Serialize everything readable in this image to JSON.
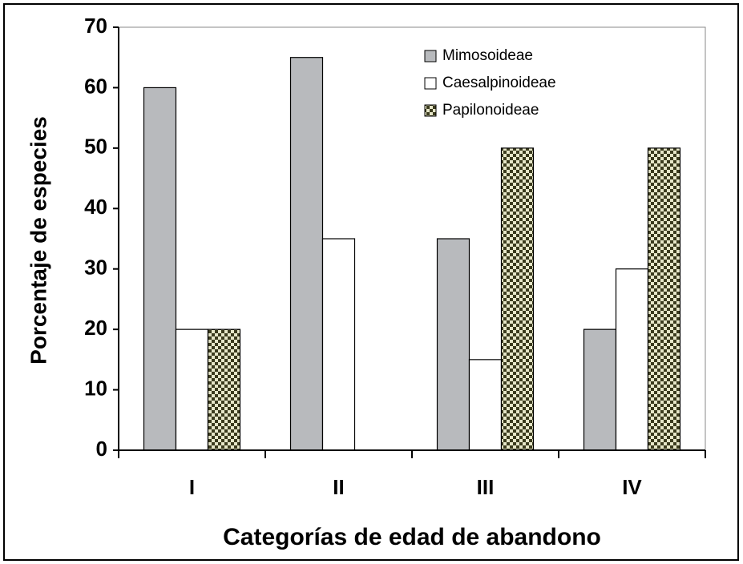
{
  "chart_data": {
    "type": "bar",
    "ylabel": "Porcentaje de especies",
    "xlabel": "Categorías de edad de abandono",
    "categories": [
      "I",
      "II",
      "III",
      "IV"
    ],
    "series": [
      {
        "name": "Mimosoideae",
        "color": "#b8babd",
        "values": [
          60,
          65,
          35,
          20
        ]
      },
      {
        "name": "Caesalpinoideae",
        "color": "#ffffff",
        "values": [
          20,
          35,
          15,
          30
        ]
      },
      {
        "name": "Papilonoideae",
        "color": "#3b3b1e",
        "fill_pattern": "checkered",
        "values": [
          20,
          0,
          50,
          50
        ]
      }
    ],
    "ylim": [
      0,
      70
    ],
    "yticks": [
      0,
      10,
      20,
      30,
      40,
      50,
      60,
      70
    ],
    "legend": "upper right"
  }
}
